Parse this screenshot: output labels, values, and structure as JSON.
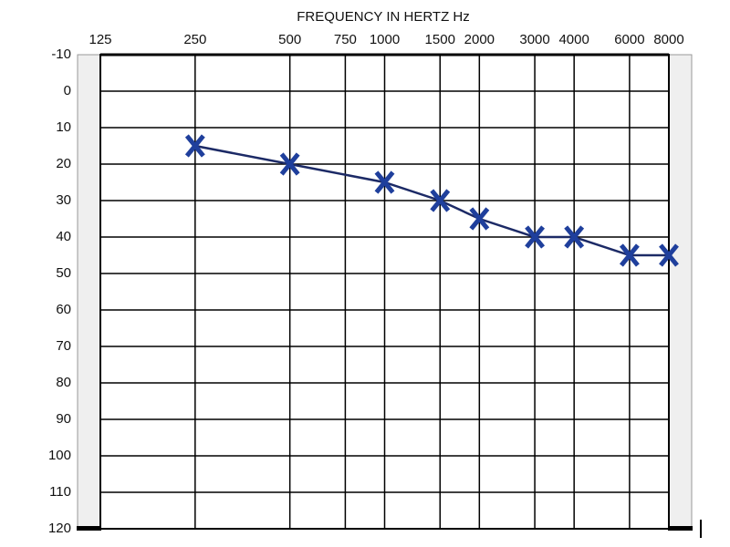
{
  "chart_data": {
    "type": "line",
    "x_label": "FREQUENCY IN HERTZ Hz",
    "x": [
      250,
      500,
      1000,
      1500,
      2000,
      3000,
      4000,
      6000,
      8000
    ],
    "series": [
      {
        "color": "#1c2a66",
        "marker_color": "#1f3f9c",
        "marker": "x",
        "values": [
          15,
          20,
          25,
          30,
          35,
          40,
          40,
          45,
          45
        ]
      }
    ],
    "x_scale": "log",
    "xlim": [
      125,
      8000
    ],
    "xticks": [
      125,
      250,
      500,
      750,
      1000,
      1500,
      2000,
      3000,
      4000,
      6000,
      8000
    ],
    "ylim": [
      120,
      -10
    ],
    "yticks": [
      -10,
      0,
      10,
      20,
      30,
      40,
      50,
      60,
      70,
      80,
      90,
      100,
      110,
      120
    ],
    "grid": true
  }
}
